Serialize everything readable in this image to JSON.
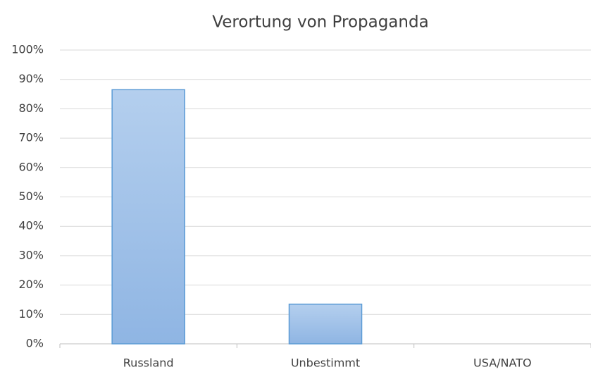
{
  "chart_data": {
    "type": "bar",
    "title": "Verortung von Propaganda",
    "categories": [
      "Russland",
      "Unbestimmt",
      "USA/NATO"
    ],
    "values": [
      86.5,
      13.5,
      0
    ],
    "color": "#9dc3e6",
    "ylim": [
      0,
      100
    ],
    "yticks": [
      {
        "value": 0,
        "label": "0%"
      },
      {
        "value": 10,
        "label": "10%"
      },
      {
        "value": 20,
        "label": "20%"
      },
      {
        "value": 30,
        "label": "30%"
      },
      {
        "value": 40,
        "label": "40%"
      },
      {
        "value": 50,
        "label": "50%"
      },
      {
        "value": 60,
        "label": "60%"
      },
      {
        "value": 70,
        "label": "70%"
      },
      {
        "value": 80,
        "label": "80%"
      },
      {
        "value": 90,
        "label": "90%"
      },
      {
        "value": 100,
        "label": "100%"
      }
    ],
    "grid": true
  }
}
